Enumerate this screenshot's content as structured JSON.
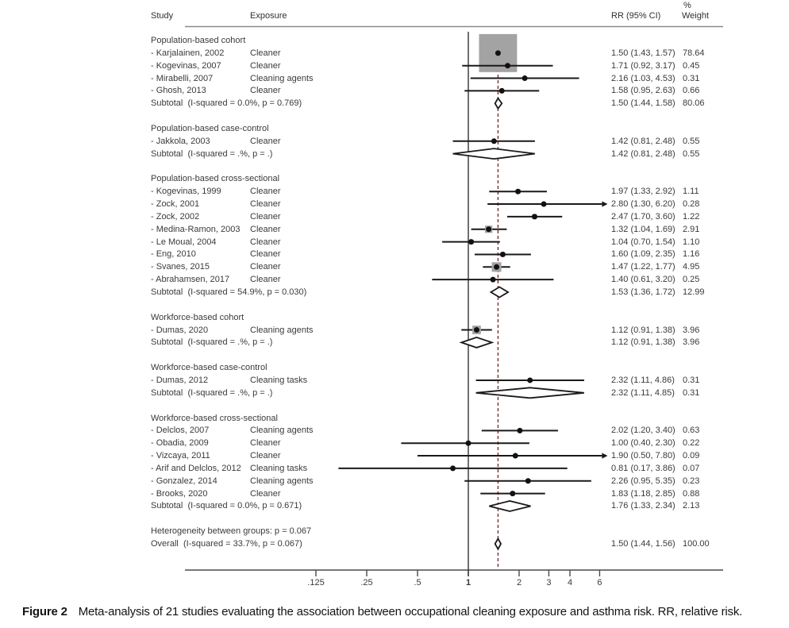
{
  "header": {
    "study": "Study",
    "exposure": "Exposure",
    "rr_ci": "RR (95% CI)",
    "pct": "%",
    "weight": "Weight"
  },
  "chart_data": {
    "type": "forest",
    "x_scale": "log",
    "x_ticks": [
      0.125,
      0.25,
      0.5,
      1,
      2,
      3,
      4,
      6
    ],
    "x_tick_labels": [
      ".125",
      ".25",
      ".5",
      "1",
      "2",
      "3",
      "4",
      "6"
    ],
    "null_value": 1,
    "overall_dashed_value": 1.5,
    "clip_upper": 6,
    "colors": {
      "square": "#a3a3a3",
      "dashed_line": "#7b2f2f",
      "line": "#1a1a1a",
      "axis": "#4a4a4a",
      "rule": "#8a8a8a"
    },
    "groups": [
      {
        "label": "Population-based cohort",
        "studies": [
          {
            "study": "- Karjalainen, 2002",
            "exposure": "Cleaner",
            "rr": 1.5,
            "ci_low": 1.43,
            "ci_high": 1.57,
            "rr_ci_text": "1.50 (1.43, 1.57)",
            "weight": 78.64,
            "weight_text": "78.64"
          },
          {
            "study": "- Kogevinas, 2007",
            "exposure": "Cleaner",
            "rr": 1.71,
            "ci_low": 0.92,
            "ci_high": 3.17,
            "rr_ci_text": "1.71 (0.92, 3.17)",
            "weight": 0.45,
            "weight_text": "0.45"
          },
          {
            "study": "- Mirabelli, 2007",
            "exposure": "Cleaning agents",
            "rr": 2.16,
            "ci_low": 1.03,
            "ci_high": 4.53,
            "rr_ci_text": "2.16 (1.03, 4.53)",
            "weight": 0.31,
            "weight_text": "0.31"
          },
          {
            "study": "- Ghosh, 2013",
            "exposure": "Cleaner",
            "rr": 1.58,
            "ci_low": 0.95,
            "ci_high": 2.63,
            "rr_ci_text": "1.58 (0.95, 2.63)",
            "weight": 0.66,
            "weight_text": "0.66"
          }
        ],
        "subtotal": {
          "label": "Subtotal  (I-squared = 0.0%, p = 0.769)",
          "rr": 1.5,
          "ci_low": 1.44,
          "ci_high": 1.58,
          "rr_ci_text": "1.50 (1.44, 1.58)",
          "weight_text": "80.06"
        }
      },
      {
        "label": "Population-based case-control",
        "studies": [
          {
            "study": "- Jakkola, 2003",
            "exposure": "Cleaner",
            "rr": 1.42,
            "ci_low": 0.81,
            "ci_high": 2.48,
            "rr_ci_text": "1.42 (0.81, 2.48)",
            "weight": 0.55,
            "weight_text": "0.55"
          }
        ],
        "subtotal": {
          "label": "Subtotal  (I-squared = .%, p = .)",
          "rr": 1.42,
          "ci_low": 0.81,
          "ci_high": 2.48,
          "rr_ci_text": "1.42 (0.81, 2.48)",
          "weight_text": "0.55"
        }
      },
      {
        "label": "Population-based cross-sectional",
        "studies": [
          {
            "study": "- Kogevinas, 1999",
            "exposure": "Cleaner",
            "rr": 1.97,
            "ci_low": 1.33,
            "ci_high": 2.92,
            "rr_ci_text": "1.97 (1.33, 2.92)",
            "weight": 1.11,
            "weight_text": "1.11"
          },
          {
            "study": "- Zock, 2001",
            "exposure": "Cleaner",
            "rr": 2.8,
            "ci_low": 1.3,
            "ci_high": 6.2,
            "rr_ci_text": "2.80 (1.30, 6.20)",
            "weight": 0.28,
            "weight_text": "0.28"
          },
          {
            "study": "- Zock, 2002",
            "exposure": "Cleaner",
            "rr": 2.47,
            "ci_low": 1.7,
            "ci_high": 3.6,
            "rr_ci_text": "2.47 (1.70, 3.60)",
            "weight": 1.22,
            "weight_text": "1.22"
          },
          {
            "study": "- Medina-Ramon, 2003",
            "exposure": "Cleaner",
            "rr": 1.32,
            "ci_low": 1.04,
            "ci_high": 1.69,
            "rr_ci_text": "1.32 (1.04, 1.69)",
            "weight": 2.91,
            "weight_text": "2.91"
          },
          {
            "study": "- Le Moual, 2004",
            "exposure": "Cleaner",
            "rr": 1.04,
            "ci_low": 0.7,
            "ci_high": 1.54,
            "rr_ci_text": "1.04 (0.70, 1.54)",
            "weight": 1.1,
            "weight_text": "1.10"
          },
          {
            "study": "- Eng, 2010",
            "exposure": "Cleaner",
            "rr": 1.6,
            "ci_low": 1.09,
            "ci_high": 2.35,
            "rr_ci_text": "1.60 (1.09, 2.35)",
            "weight": 1.16,
            "weight_text": "1.16"
          },
          {
            "study": "- Svanes, 2015",
            "exposure": "Cleaner",
            "rr": 1.47,
            "ci_low": 1.22,
            "ci_high": 1.77,
            "rr_ci_text": "1.47 (1.22, 1.77)",
            "weight": 4.95,
            "weight_text": "4.95"
          },
          {
            "study": "- Abrahamsen, 2017",
            "exposure": "Cleaner",
            "rr": 1.4,
            "ci_low": 0.61,
            "ci_high": 3.2,
            "rr_ci_text": "1.40 (0.61, 3.20)",
            "weight": 0.25,
            "weight_text": "0.25"
          }
        ],
        "subtotal": {
          "label": "Subtotal  (I-squared = 54.9%, p = 0.030)",
          "rr": 1.53,
          "ci_low": 1.36,
          "ci_high": 1.72,
          "rr_ci_text": "1.53 (1.36, 1.72)",
          "weight_text": "12.99"
        }
      },
      {
        "label": "Workforce-based cohort",
        "studies": [
          {
            "study": "- Dumas, 2020",
            "exposure": "Cleaning agents",
            "rr": 1.12,
            "ci_low": 0.91,
            "ci_high": 1.38,
            "rr_ci_text": "1.12 (0.91, 1.38)",
            "weight": 3.96,
            "weight_text": "3.96"
          }
        ],
        "subtotal": {
          "label": "Subtotal  (I-squared = .%, p = .)",
          "rr": 1.12,
          "ci_low": 0.91,
          "ci_high": 1.38,
          "rr_ci_text": "1.12 (0.91, 1.38)",
          "weight_text": "3.96"
        }
      },
      {
        "label": "Workforce-based case-control",
        "studies": [
          {
            "study": "- Dumas, 2012",
            "exposure": "Cleaning tasks",
            "rr": 2.32,
            "ci_low": 1.11,
            "ci_high": 4.86,
            "rr_ci_text": "2.32 (1.11, 4.86)",
            "weight": 0.31,
            "weight_text": "0.31"
          }
        ],
        "subtotal": {
          "label": "Subtotal  (I-squared = .%, p = .)",
          "rr": 2.32,
          "ci_low": 1.11,
          "ci_high": 4.85,
          "rr_ci_text": "2.32 (1.11, 4.85)",
          "weight_text": "0.31"
        }
      },
      {
        "label": "Workforce-based cross-sectional",
        "studies": [
          {
            "study": "- Delclos, 2007",
            "exposure": "Cleaning agents",
            "rr": 2.02,
            "ci_low": 1.2,
            "ci_high": 3.4,
            "rr_ci_text": "2.02 (1.20, 3.40)",
            "weight": 0.63,
            "weight_text": "0.63"
          },
          {
            "study": "- Obadia, 2009",
            "exposure": "Cleaner",
            "rr": 1.0,
            "ci_low": 0.4,
            "ci_high": 2.3,
            "rr_ci_text": "1.00 (0.40, 2.30)",
            "weight": 0.22,
            "weight_text": "0.22"
          },
          {
            "study": "- Vizcaya, 2011",
            "exposure": "Cleaner",
            "rr": 1.9,
            "ci_low": 0.5,
            "ci_high": 7.8,
            "rr_ci_text": "1.90 (0.50, 7.80)",
            "weight": 0.09,
            "weight_text": "0.09"
          },
          {
            "study": "- Arif and Delclos, 2012",
            "exposure": "Cleaning tasks",
            "rr": 0.81,
            "ci_low": 0.17,
            "ci_high": 3.86,
            "rr_ci_text": "0.81 (0.17, 3.86)",
            "weight": 0.07,
            "weight_text": "0.07"
          },
          {
            "study": "- Gonzalez, 2014",
            "exposure": "Cleaning agents",
            "rr": 2.26,
            "ci_low": 0.95,
            "ci_high": 5.35,
            "rr_ci_text": "2.26 (0.95, 5.35)",
            "weight": 0.23,
            "weight_text": "0.23"
          },
          {
            "study": "- Brooks, 2020",
            "exposure": "Cleaner",
            "rr": 1.83,
            "ci_low": 1.18,
            "ci_high": 2.85,
            "rr_ci_text": "1.83 (1.18, 2.85)",
            "weight": 0.88,
            "weight_text": "0.88"
          }
        ],
        "subtotal": {
          "label": "Subtotal  (I-squared = 0.0%, p = 0.671)",
          "rr": 1.76,
          "ci_low": 1.33,
          "ci_high": 2.34,
          "rr_ci_text": "1.76 (1.33, 2.34)",
          "weight_text": "2.13"
        }
      }
    ],
    "heterogeneity_note": "Heterogeneity between groups: p = 0.067",
    "overall": {
      "label": "Overall  (I-squared = 33.7%, p = 0.067)",
      "rr": 1.5,
      "ci_low": 1.44,
      "ci_high": 1.56,
      "rr_ci_text": "1.50 (1.44, 1.56)",
      "weight_text": "100.00"
    }
  },
  "caption": {
    "label": "Figure 2",
    "text": "Meta-analysis of 21 studies evaluating the association between occupational cleaning exposure and asthma risk. RR, relative risk."
  }
}
